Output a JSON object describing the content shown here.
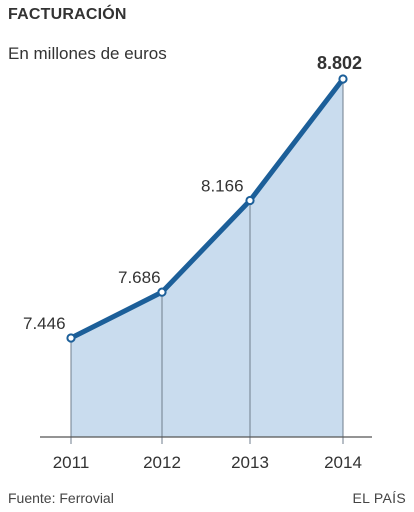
{
  "header": {
    "title": "FACTURACIÓN",
    "subtitle": "En millones de euros"
  },
  "footer": {
    "source": "Fuente: Ferrovial",
    "brand": "EL PAÍS"
  },
  "colors": {
    "line": "#1c5f99",
    "area": "#c9dcee",
    "point_fill": "#ffffff",
    "text": "#333333",
    "axis": "#555555"
  },
  "chart_data": {
    "type": "area",
    "title": "FACTURACIÓN",
    "subtitle": "En millones de euros",
    "categories": [
      "2011",
      "2012",
      "2013",
      "2014"
    ],
    "values": [
      7446,
      7686,
      8166,
      8802
    ],
    "value_labels": [
      "7.446",
      "7.686",
      "8.166",
      "8.802"
    ],
    "highlighted_label_index": 3,
    "xlabel": "",
    "ylabel": "",
    "grid": false,
    "legend": "none"
  }
}
